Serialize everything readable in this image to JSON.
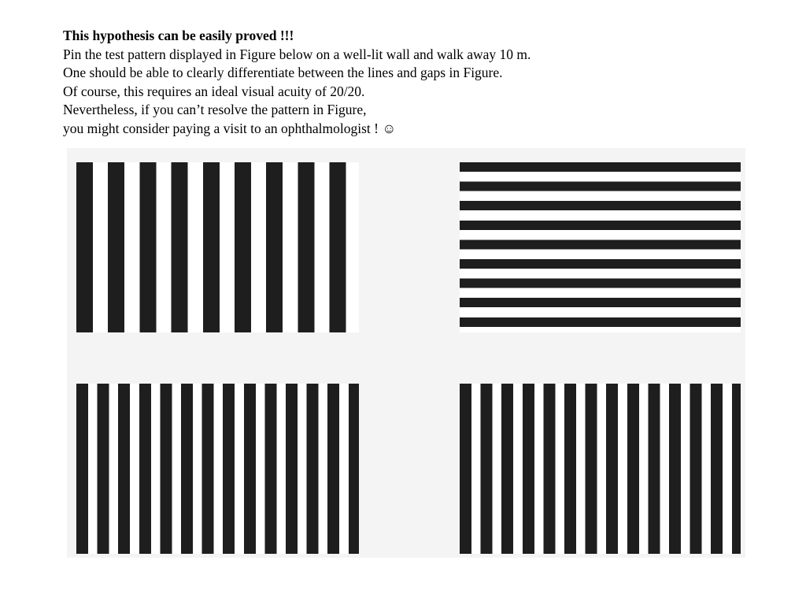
{
  "document": {
    "heading": "This hypothesis can be easily proved !!!",
    "lines": [
      "Pin the test pattern displayed in Figure below on a well-lit wall and walk away 10 m.",
      "One should be able to clearly differentiate between the lines and gaps in Figure.",
      "Of course, this requires an ideal visual acuity of 20/20.",
      "Nevertheless, if you can’t resolve the pattern in Figure,",
      "you might consider paying a visit to an ophthalmologist ! ☺"
    ]
  },
  "figure": {
    "patterns": [
      {
        "orientation": "vertical",
        "stripe_color": "#1e1e1e",
        "gap_color": "#ffffff"
      },
      {
        "orientation": "horizontal",
        "stripe_color": "#1e1e1e",
        "gap_color": "#ffffff"
      },
      {
        "orientation": "vertical",
        "stripe_color": "#1e1e1e",
        "gap_color": "#ffffff"
      },
      {
        "orientation": "vertical",
        "stripe_color": "#1e1e1e",
        "gap_color": "#ffffff"
      }
    ],
    "background_color": "#f4f4f4"
  }
}
